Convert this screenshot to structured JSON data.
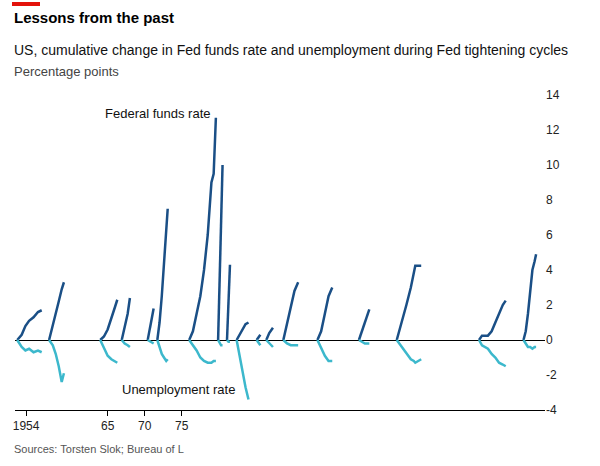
{
  "chart_data": {
    "type": "line",
    "title": "Lessons from the past",
    "subtitle": "US, cumulative change in Fed funds rate and unemployment during Fed tightening cycles",
    "y_label": "Percentage points",
    "source": "Sources: Torsten Slok; Bureau of L",
    "x": [
      1952.8,
      1953.4,
      1953.9,
      1954.4,
      1955.0,
      1955.6,
      1956.1,
      1956.1,
      1957.1,
      1957.6,
      1958.0,
      1958.4,
      1958.8,
      1959.1,
      1959.1,
      1964.0,
      1964.5,
      1965.0,
      1965.5,
      1966.0,
      1966.3,
      1966.3,
      1966.9,
      1967.3,
      1967.7,
      1968.0,
      1968.0,
      1970.4,
      1970.8,
      1971.2,
      1971.2,
      1971.7,
      1972.0,
      1972.3,
      1972.6,
      1972.9,
      1973.1,
      1973.1,
      1976.0,
      1976.5,
      1977.0,
      1977.5,
      1978.0,
      1978.5,
      1979.0,
      1979.3,
      1979.6,
      1979.6,
      1979.9,
      1980.1,
      1980.3,
      1980.5,
      1980.5,
      1981.1,
      1981.3,
      1981.5,
      1981.5,
      1982.4,
      1982.8,
      1983.2,
      1983.6,
      1984.0,
      1984.0,
      1985.1,
      1985.6,
      1985.6,
      1986.4,
      1986.8,
      1987.3,
      1987.3,
      1988.7,
      1989.2,
      1989.7,
      1990.2,
      1990.7,
      1990.7,
      1993.3,
      1993.8,
      1994.3,
      1994.8,
      1995.3,
      1995.3,
      1998.9,
      1999.3,
      1999.7,
      2000.0,
      2000.3,
      2000.3,
      2004.0,
      2004.7,
      2005.3,
      2005.9,
      2006.3,
      2006.5,
      2007.3,
      2007.3,
      2015.1,
      2015.5,
      2016.3,
      2016.8,
      2017.3,
      2017.8,
      2018.3,
      2018.7,
      2018.7,
      2021.1,
      2021.4,
      2021.7,
      2022.0,
      2022.3,
      2022.6,
      2022.8
    ],
    "series": [
      {
        "name": "Federal funds rate",
        "color": "#1a4f86",
        "values": [
          0,
          0.3,
          0.8,
          1.1,
          1.3,
          1.6,
          1.7,
          null,
          0,
          0.8,
          1.6,
          2.2,
          2.9,
          3.3,
          null,
          0,
          0.2,
          0.6,
          1.2,
          1.9,
          2.3,
          null,
          0,
          0.8,
          1.5,
          2.4,
          null,
          0,
          0.9,
          1.8,
          null,
          0,
          1.0,
          2.5,
          4.5,
          6.5,
          7.5,
          null,
          0,
          0.5,
          1.5,
          2.5,
          4.0,
          6.0,
          9.0,
          9.5,
          12.7,
          null,
          0,
          4.0,
          8.0,
          10.0,
          null,
          0,
          2.0,
          4.3,
          null,
          0,
          0.3,
          0.6,
          0.9,
          1.0,
          null,
          0,
          0.3,
          null,
          0,
          0.4,
          0.7,
          null,
          0,
          1.0,
          2.0,
          2.8,
          3.3,
          null,
          0,
          0.5,
          1.5,
          2.5,
          3.0,
          null,
          0,
          0.5,
          1.0,
          1.5,
          1.75,
          null,
          0,
          1.0,
          2.0,
          3.0,
          3.8,
          4.25,
          4.25,
          null,
          0,
          0.25,
          0.25,
          0.5,
          1.0,
          1.5,
          2.0,
          2.25,
          null,
          0,
          0.5,
          1.5,
          3.0,
          4.0,
          4.5,
          4.9
        ]
      },
      {
        "name": "Unemployment rate",
        "color": "#3cb8cc",
        "values": [
          0,
          -0.4,
          -0.6,
          -0.5,
          -0.7,
          -0.6,
          -0.7,
          null,
          0,
          -0.3,
          -0.8,
          -1.5,
          -2.4,
          -1.9,
          null,
          0,
          -0.5,
          -0.9,
          -1.1,
          -1.2,
          -1.3,
          null,
          0,
          -0.2,
          -0.3,
          -0.4,
          null,
          0,
          -0.1,
          -0.2,
          null,
          0,
          -0.4,
          -0.8,
          -1.0,
          -1.2,
          -1.1,
          null,
          0,
          -0.3,
          -0.6,
          -1.0,
          -1.2,
          -1.3,
          -1.3,
          -1.2,
          -1.2,
          null,
          0,
          -0.2,
          -0.3,
          -0.3,
          null,
          0,
          -0.1,
          -0.1,
          null,
          0,
          -0.8,
          -1.8,
          -2.7,
          -3.4,
          null,
          0,
          -0.3,
          null,
          0,
          -0.2,
          -0.4,
          null,
          0,
          -0.2,
          -0.3,
          -0.3,
          -0.3,
          null,
          0,
          -0.5,
          -0.9,
          -1.2,
          -1.2,
          null,
          0,
          -0.1,
          -0.2,
          -0.2,
          -0.2,
          null,
          0,
          -0.4,
          -0.8,
          -1.1,
          -1.2,
          -1.3,
          -1.1,
          null,
          0,
          -0.3,
          -0.5,
          -0.8,
          -1.0,
          -1.3,
          -1.4,
          -1.5,
          null,
          0,
          -0.2,
          -0.4,
          -0.4,
          -0.5,
          -0.4,
          -0.4
        ]
      }
    ],
    "xlim": [
      1952.5,
      2024
    ],
    "xticks": [
      1954,
      {
        "value": 1965,
        "label": "65"
      },
      {
        "value": 1970,
        "label": "70"
      },
      {
        "value": 1975,
        "label": "75"
      }
    ],
    "ylim": [
      -4,
      14
    ],
    "yticks": [
      -4,
      -2,
      0,
      2,
      4,
      6,
      8,
      10,
      12,
      14
    ],
    "grid": false
  }
}
